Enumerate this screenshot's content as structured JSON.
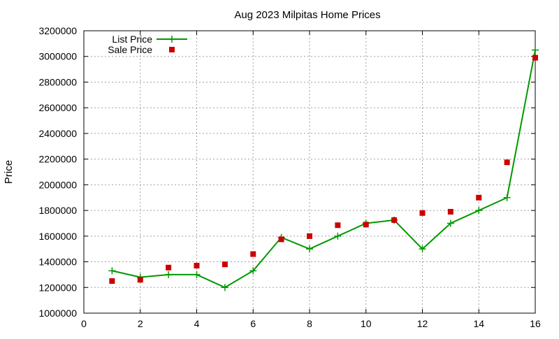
{
  "chart_data": {
    "type": "line",
    "title": "Aug 2023 Milpitas Home Prices",
    "xlabel": "",
    "ylabel": "Price",
    "xlim": [
      0,
      16
    ],
    "ylim": [
      1000000,
      3200000
    ],
    "x_ticks": [
      0,
      2,
      4,
      6,
      8,
      10,
      12,
      14,
      16
    ],
    "y_ticks": [
      1000000,
      1200000,
      1400000,
      1600000,
      1800000,
      2000000,
      2200000,
      2400000,
      2600000,
      2800000,
      3000000,
      3200000
    ],
    "grid": true,
    "legend_position": "top-left",
    "series": [
      {
        "name": "List Price",
        "style": "line-with-plus-markers",
        "color": "#009900",
        "x": [
          1,
          2,
          3,
          4,
          5,
          6,
          7,
          8,
          9,
          10,
          11,
          12,
          13,
          14,
          15,
          16
        ],
        "y": [
          1330000,
          1280000,
          1300000,
          1300000,
          1200000,
          1330000,
          1590000,
          1500000,
          1600000,
          1700000,
          1725000,
          1500000,
          1700000,
          1800000,
          1900000,
          3050000
        ]
      },
      {
        "name": "Sale Price",
        "style": "square-markers",
        "color": "#cc0000",
        "x": [
          1,
          2,
          3,
          4,
          5,
          6,
          7,
          8,
          9,
          10,
          11,
          12,
          13,
          14,
          15,
          16
        ],
        "y": [
          1250000,
          1260000,
          1355000,
          1370000,
          1380000,
          1460000,
          1575000,
          1600000,
          1685000,
          1690000,
          1725000,
          1780000,
          1790000,
          1900000,
          2175000,
          2990000
        ]
      }
    ]
  }
}
